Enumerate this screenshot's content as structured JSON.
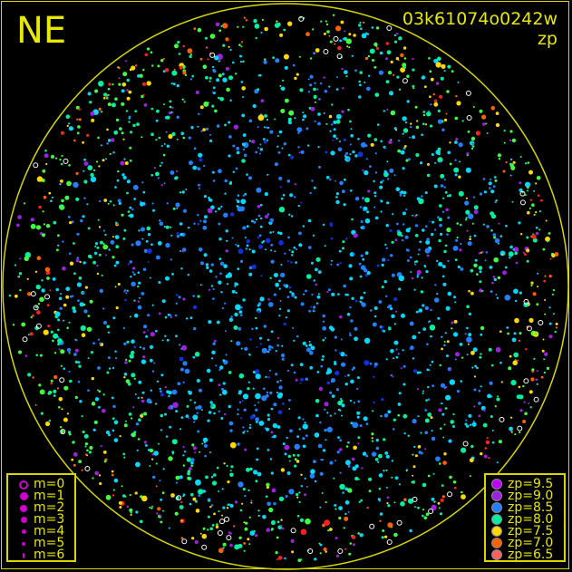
{
  "header": {
    "direction": "NE",
    "frame_id": "03k61074o0242w",
    "mode": "zp"
  },
  "magnitude_legend": [
    {
      "label": "m=0",
      "style": "ring"
    },
    {
      "label": "m=1",
      "style": "dot"
    },
    {
      "label": "m=2",
      "style": "dot"
    },
    {
      "label": "m=3",
      "style": "dot"
    },
    {
      "label": "m=4",
      "style": "dot"
    },
    {
      "label": "m=5",
      "style": "dot"
    },
    {
      "label": "m=6",
      "style": "dot"
    }
  ],
  "magnitude_color": "#d000d0",
  "zp_legend": [
    {
      "label": "zp=9.5",
      "color": "#c000ff"
    },
    {
      "label": "zp=9.0",
      "color": "#a020e0"
    },
    {
      "label": "zp=8.5",
      "color": "#2080ff"
    },
    {
      "label": "zp=8.0",
      "color": "#00f0a0"
    },
    {
      "label": "zp=7.5",
      "color": "#ffd800"
    },
    {
      "label": "zp=7.0",
      "color": "#ff6000"
    },
    {
      "label": "zp=6.5",
      "color": "#ff6060"
    }
  ],
  "horizon_color": "#d8d800"
}
